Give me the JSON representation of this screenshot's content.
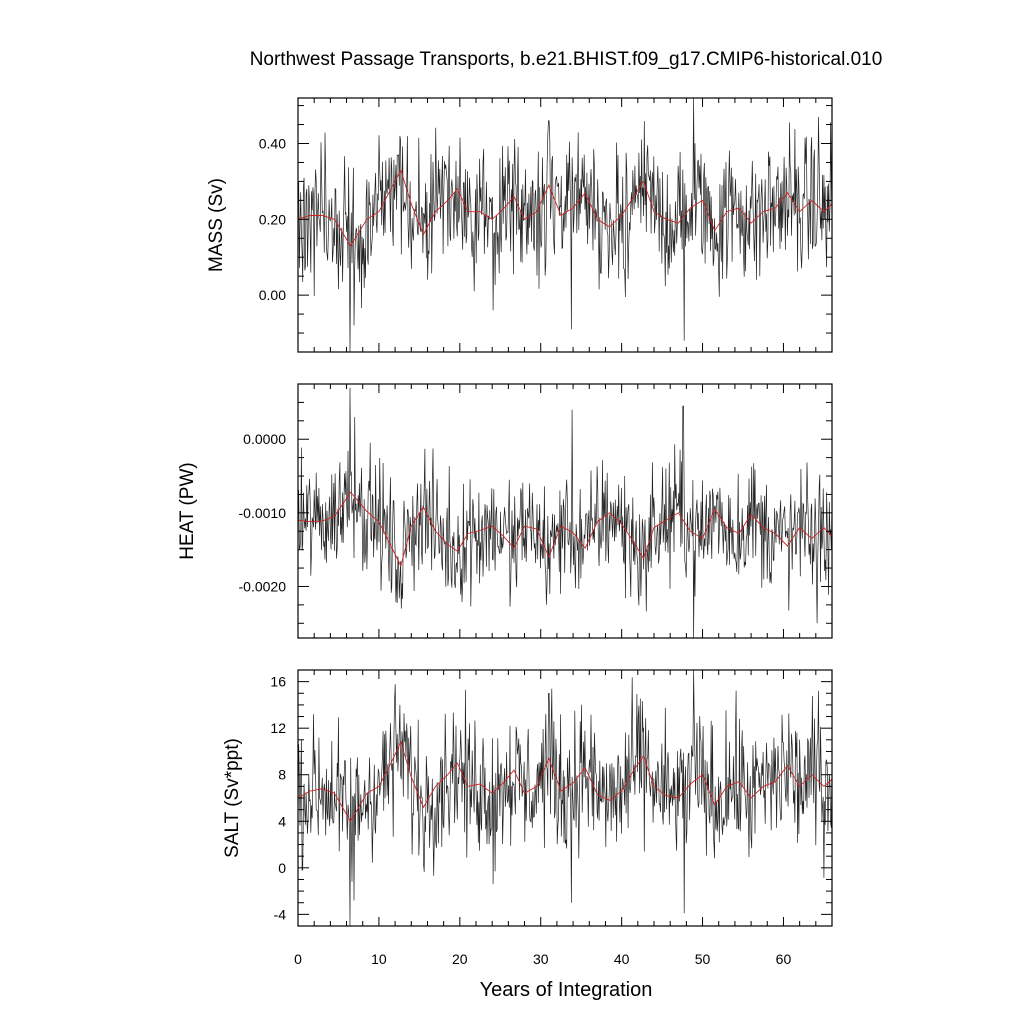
{
  "chart_data": {
    "title": "Northwest Passage Transports, b.e21.BHIST.f09_g17.CMIP6-historical.010",
    "xlabel": "Years of Integration",
    "xlim": [
      0,
      66
    ],
    "xticks": [
      0,
      10,
      20,
      30,
      40,
      50,
      60
    ],
    "xtick_labels": [
      "0",
      "10",
      "20",
      "30",
      "40",
      "50",
      "60"
    ],
    "colors": {
      "monthly": "#222222",
      "smoothed": "#cc2222"
    },
    "panels": [
      {
        "type": "line",
        "ylabel": "MASS (Sv)",
        "ylim": [
          -0.15,
          0.52
        ],
        "yticks": [
          0.0,
          0.2,
          0.4
        ],
        "ytick_labels": [
          "0.00",
          "0.20",
          "0.40"
        ],
        "monthly_stats": {
          "mean": 0.21,
          "amplitude": 0.09,
          "min": -0.15,
          "max": 0.52
        },
        "extremes": [
          {
            "x": 6.4,
            "y": -0.15
          },
          {
            "x": 6.9,
            "y": -0.08
          },
          {
            "x": 24.1,
            "y": -0.04
          },
          {
            "x": 33.8,
            "y": -0.09
          },
          {
            "x": 47.7,
            "y": -0.12
          },
          {
            "x": 48.9,
            "y": 0.52
          },
          {
            "x": 12.6,
            "y": 0.42
          },
          {
            "x": 31.0,
            "y": 0.46
          },
          {
            "x": 64.3,
            "y": 0.47
          }
        ],
        "smoothed": {
          "x": [
            0,
            1.5,
            3,
            4.5,
            6.5,
            8.5,
            10,
            11.5,
            12.7,
            14,
            15.5,
            17,
            18.5,
            19.7,
            21,
            22.5,
            24,
            25.5,
            26.7,
            28,
            29.5,
            31,
            32.5,
            34,
            35.5,
            37,
            38.5,
            40,
            41.5,
            42.7,
            44,
            45.5,
            47,
            48.5,
            50,
            51.5,
            53,
            54.5,
            56,
            57.5,
            59,
            60.5,
            62,
            63.5,
            65,
            66
          ],
          "y": [
            0.2,
            0.21,
            0.21,
            0.2,
            0.13,
            0.2,
            0.22,
            0.28,
            0.33,
            0.24,
            0.16,
            0.22,
            0.25,
            0.28,
            0.22,
            0.22,
            0.2,
            0.23,
            0.26,
            0.2,
            0.22,
            0.29,
            0.21,
            0.23,
            0.27,
            0.2,
            0.18,
            0.21,
            0.26,
            0.3,
            0.22,
            0.2,
            0.19,
            0.23,
            0.25,
            0.17,
            0.22,
            0.23,
            0.19,
            0.22,
            0.23,
            0.27,
            0.22,
            0.25,
            0.22,
            0.24
          ]
        }
      },
      {
        "type": "line",
        "ylabel": "HEAT (PW)",
        "ylim": [
          -0.0027,
          0.00075
        ],
        "yticks": [
          -0.002,
          -0.001,
          0.0
        ],
        "ytick_labels": [
          "-0.0020",
          "-0.0010",
          "0.0000"
        ],
        "monthly_stats": {
          "mean": -0.0012,
          "amplitude": 0.0004,
          "min": -0.0027,
          "max": 0.0007
        },
        "extremes": [
          {
            "x": 6.4,
            "y": 0.0007
          },
          {
            "x": 7.0,
            "y": 0.0003
          },
          {
            "x": 12.8,
            "y": -0.0023
          },
          {
            "x": 33.9,
            "y": 0.0004
          },
          {
            "x": 47.6,
            "y": 0.00045
          },
          {
            "x": 48.9,
            "y": -0.0027
          },
          {
            "x": 64.2,
            "y": -0.0025
          }
        ],
        "smoothed": {
          "x": [
            0,
            1.5,
            3,
            4.5,
            6.5,
            8.5,
            10,
            11.5,
            12.7,
            14,
            15.5,
            17,
            18.5,
            19.7,
            21,
            22.5,
            24,
            25.5,
            26.7,
            28,
            29.5,
            31,
            32.5,
            34,
            35.5,
            37,
            38.5,
            40,
            41.5,
            42.7,
            44,
            45.5,
            47,
            48.5,
            50,
            51.5,
            53,
            54.5,
            56,
            57.5,
            59,
            60.5,
            62,
            63.5,
            65,
            66
          ],
          "y": [
            -0.0011,
            -0.00112,
            -0.00111,
            -0.00105,
            -0.00072,
            -0.00098,
            -0.00112,
            -0.00145,
            -0.00172,
            -0.00118,
            -0.00092,
            -0.00125,
            -0.00143,
            -0.00152,
            -0.00128,
            -0.00124,
            -0.00118,
            -0.00133,
            -0.00148,
            -0.00118,
            -0.00122,
            -0.0016,
            -0.00118,
            -0.00127,
            -0.00148,
            -0.00112,
            -0.001,
            -0.00115,
            -0.0014,
            -0.00162,
            -0.0012,
            -0.0011,
            -0.001,
            -0.00125,
            -0.00135,
            -0.00095,
            -0.0012,
            -0.00128,
            -0.00102,
            -0.0012,
            -0.00128,
            -0.00145,
            -0.0012,
            -0.00135,
            -0.0012,
            -0.00132
          ]
        }
      },
      {
        "type": "line",
        "ylabel": "SALT (Sv*ppt)",
        "ylim": [
          -5,
          17
        ],
        "yticks": [
          -4,
          0,
          4,
          8,
          12,
          16
        ],
        "ytick_labels": [
          "-4",
          "0",
          "4",
          "8",
          "12",
          "16"
        ],
        "monthly_stats": {
          "mean": 6.9,
          "amplitude": 2.9,
          "min": -5,
          "max": 17
        },
        "extremes": [
          {
            "x": 6.4,
            "y": -5.0
          },
          {
            "x": 6.9,
            "y": -2.8
          },
          {
            "x": 24.1,
            "y": -1.4
          },
          {
            "x": 33.8,
            "y": -3.0
          },
          {
            "x": 47.7,
            "y": -3.9
          },
          {
            "x": 48.9,
            "y": 17.0
          },
          {
            "x": 12.6,
            "y": 14.0
          },
          {
            "x": 31.0,
            "y": 15.0
          },
          {
            "x": 64.3,
            "y": 15.2
          }
        ],
        "smoothed": {
          "x": [
            0,
            1.5,
            3,
            4.5,
            6.5,
            8.5,
            10,
            11.5,
            12.7,
            14,
            15.5,
            17,
            18.5,
            19.7,
            21,
            22.5,
            24,
            25.5,
            26.7,
            28,
            29.5,
            31,
            32.5,
            34,
            35.5,
            37,
            38.5,
            40,
            41.5,
            42.7,
            44,
            45.5,
            47,
            48.5,
            50,
            51.5,
            53,
            54.5,
            56,
            57.5,
            59,
            60.5,
            62,
            63.5,
            65,
            66
          ],
          "y": [
            6.0,
            6.6,
            6.8,
            6.4,
            4.0,
            6.4,
            7.0,
            9.0,
            10.8,
            7.8,
            5.2,
            7.0,
            8.0,
            9.0,
            7.0,
            7.2,
            6.4,
            7.4,
            8.4,
            6.4,
            7.0,
            9.4,
            6.6,
            7.3,
            8.6,
            6.3,
            5.8,
            6.6,
            8.4,
            9.6,
            7.0,
            6.2,
            6.0,
            7.2,
            8.0,
            5.4,
            7.0,
            7.4,
            6.0,
            7.0,
            7.4,
            8.8,
            7.0,
            8.0,
            7.0,
            7.6
          ]
        }
      }
    ]
  }
}
